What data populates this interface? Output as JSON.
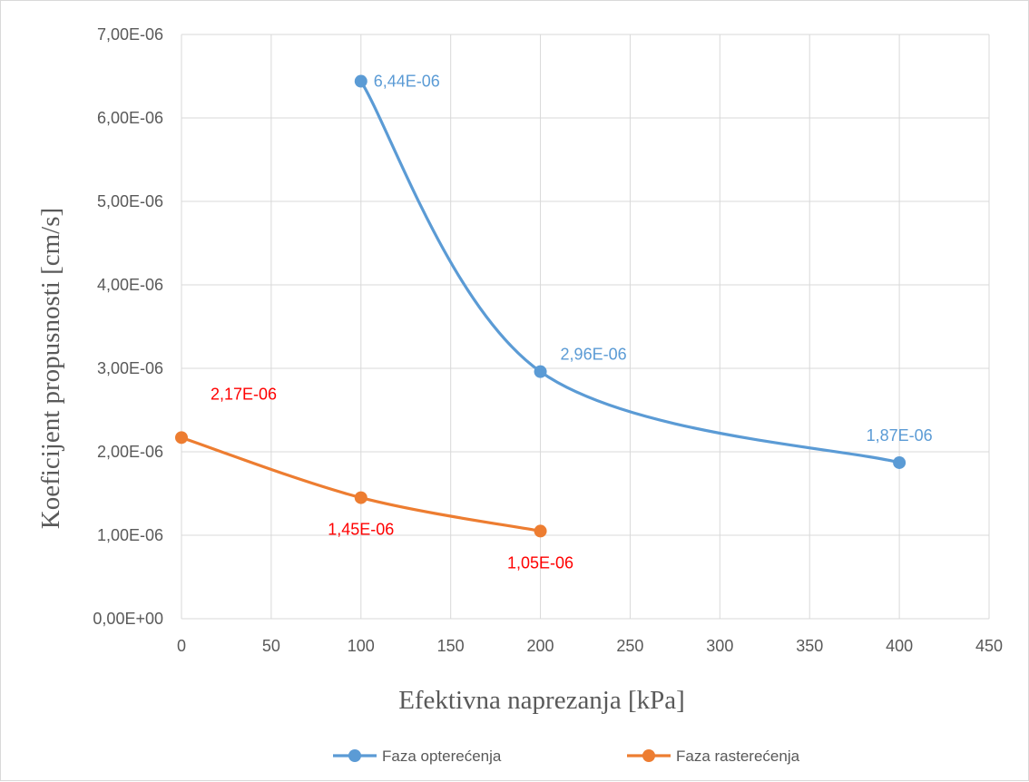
{
  "chart_data": {
    "type": "line",
    "xlabel": "Efektivna naprezanja [kPa]",
    "ylabel": "Koeficijent propusnosti [cm/s]",
    "xlim": [
      0,
      450
    ],
    "ylim": [
      0,
      7e-06
    ],
    "x_ticks": [
      0,
      50,
      100,
      150,
      200,
      250,
      300,
      350,
      400,
      450
    ],
    "x_tick_labels": [
      "0",
      "50",
      "100",
      "150",
      "200",
      "250",
      "300",
      "350",
      "400",
      "450"
    ],
    "y_ticks": [
      0,
      1e-06,
      2e-06,
      3e-06,
      4e-06,
      5e-06,
      6e-06,
      7e-06
    ],
    "y_tick_labels": [
      "0,00E+00",
      "1,00E-06",
      "2,00E-06",
      "3,00E-06",
      "4,00E-06",
      "5,00E-06",
      "6,00E-06",
      "7,00E-06"
    ],
    "grid": true,
    "smooth": true,
    "legend_position": "bottom",
    "series": [
      {
        "name": "Faza opterećenja",
        "color": "#5b9bd5",
        "label_color": "#5b9bd5",
        "x": [
          100,
          200,
          400
        ],
        "y": [
          6.44e-06,
          2.96e-06,
          1.87e-06
        ],
        "labels": [
          "6,44E-06",
          "2,96E-06",
          "1,87E-06"
        ]
      },
      {
        "name": "Faza rasterećenja",
        "color": "#ed7d31",
        "label_color": "#ff0000",
        "x": [
          0,
          100,
          200
        ],
        "y": [
          2.17e-06,
          1.45e-06,
          1.05e-06
        ],
        "labels": [
          "2,17E-06",
          "1,45E-06",
          "1,05E-06"
        ]
      }
    ]
  }
}
